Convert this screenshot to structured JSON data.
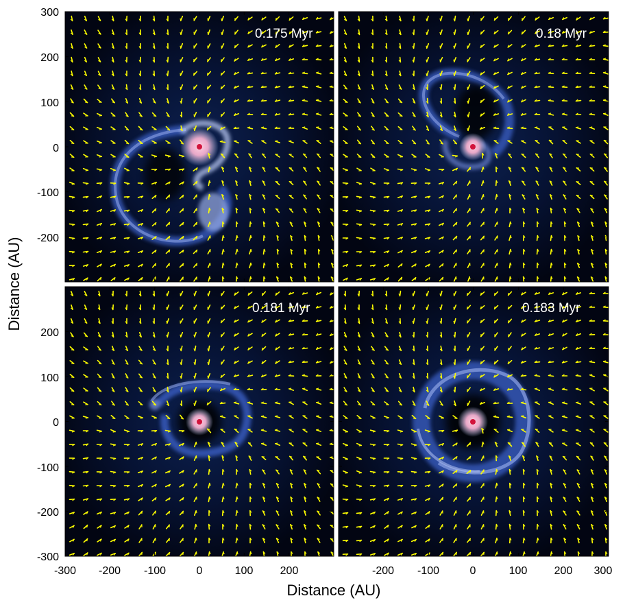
{
  "figure": {
    "xlabel": "Distance (AU)",
    "ylabel": "Distance (AU)",
    "axis_range": [
      -300,
      300
    ],
    "y_ticks_top_row": [
      "300",
      "200",
      "100",
      "0",
      "-100",
      "-200"
    ],
    "y_ticks_bottom_row": [
      "200",
      "100",
      "0",
      "-100",
      "-200",
      "-300"
    ],
    "x_ticks_left_col": [
      "-300",
      "-200",
      "-100",
      "0",
      "100",
      "200"
    ],
    "x_ticks_right_col": [
      "-200",
      "-100",
      "0",
      "100",
      "200",
      "300"
    ],
    "colors": {
      "background": "#020512",
      "gas": "#3a5fc4",
      "gas_bright": "#b9c8f2",
      "core": "#f0a0c0",
      "star": "#d2143c",
      "vectors": "#ffff00",
      "label": "#ffffff"
    }
  },
  "panels": [
    {
      "id": "top-left",
      "time_label": "0.175 Myr"
    },
    {
      "id": "top-right",
      "time_label": "0.18 Myr"
    },
    {
      "id": "bottom-left",
      "time_label": "0.181 Myr"
    },
    {
      "id": "bottom-right",
      "time_label": "0.183 Myr"
    }
  ]
}
